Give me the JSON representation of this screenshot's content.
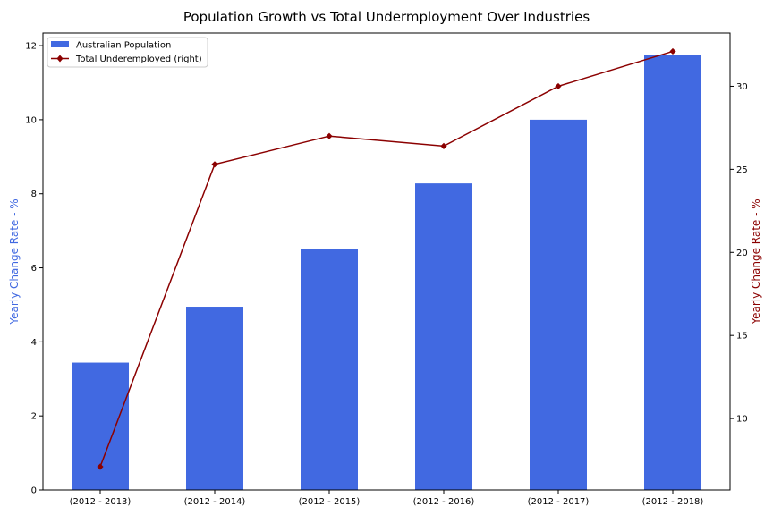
{
  "chart_data": {
    "type": "bar",
    "title": "Population Growth vs Total Undermployment Over Industries",
    "categories": [
      "(2012 - 2013)",
      "(2012 - 2014)",
      "(2012 - 2015)",
      "(2012 - 2016)",
      "(2012 - 2017)",
      "(2012 - 2018)"
    ],
    "series": [
      {
        "name": "Australian Population",
        "type": "bar",
        "axis": "left",
        "color": "#4169e1",
        "values": [
          3.44,
          4.95,
          6.5,
          8.28,
          10.0,
          11.75
        ]
      },
      {
        "name": "Total Underemployed  (right)",
        "type": "line",
        "axis": "right",
        "color": "#8b0000",
        "marker": "diamond",
        "values": [
          7.1,
          25.3,
          27.0,
          26.4,
          30.0,
          32.1
        ]
      }
    ],
    "ylabel": "Yearly Change Rate - %",
    "ylabel_right": "Yearly Change Rate - %",
    "ylabel_color": "#4169e1",
    "ylabel_right_color": "#8b0000",
    "ylim": [
      0,
      12.34
    ],
    "ylim_right": [
      5.7,
      33.2
    ],
    "yticks": [
      0,
      2,
      4,
      6,
      8,
      10,
      12
    ],
    "yticks_right": [
      10,
      15,
      20,
      25,
      30
    ],
    "grid": false,
    "legend_position": "top-left"
  }
}
